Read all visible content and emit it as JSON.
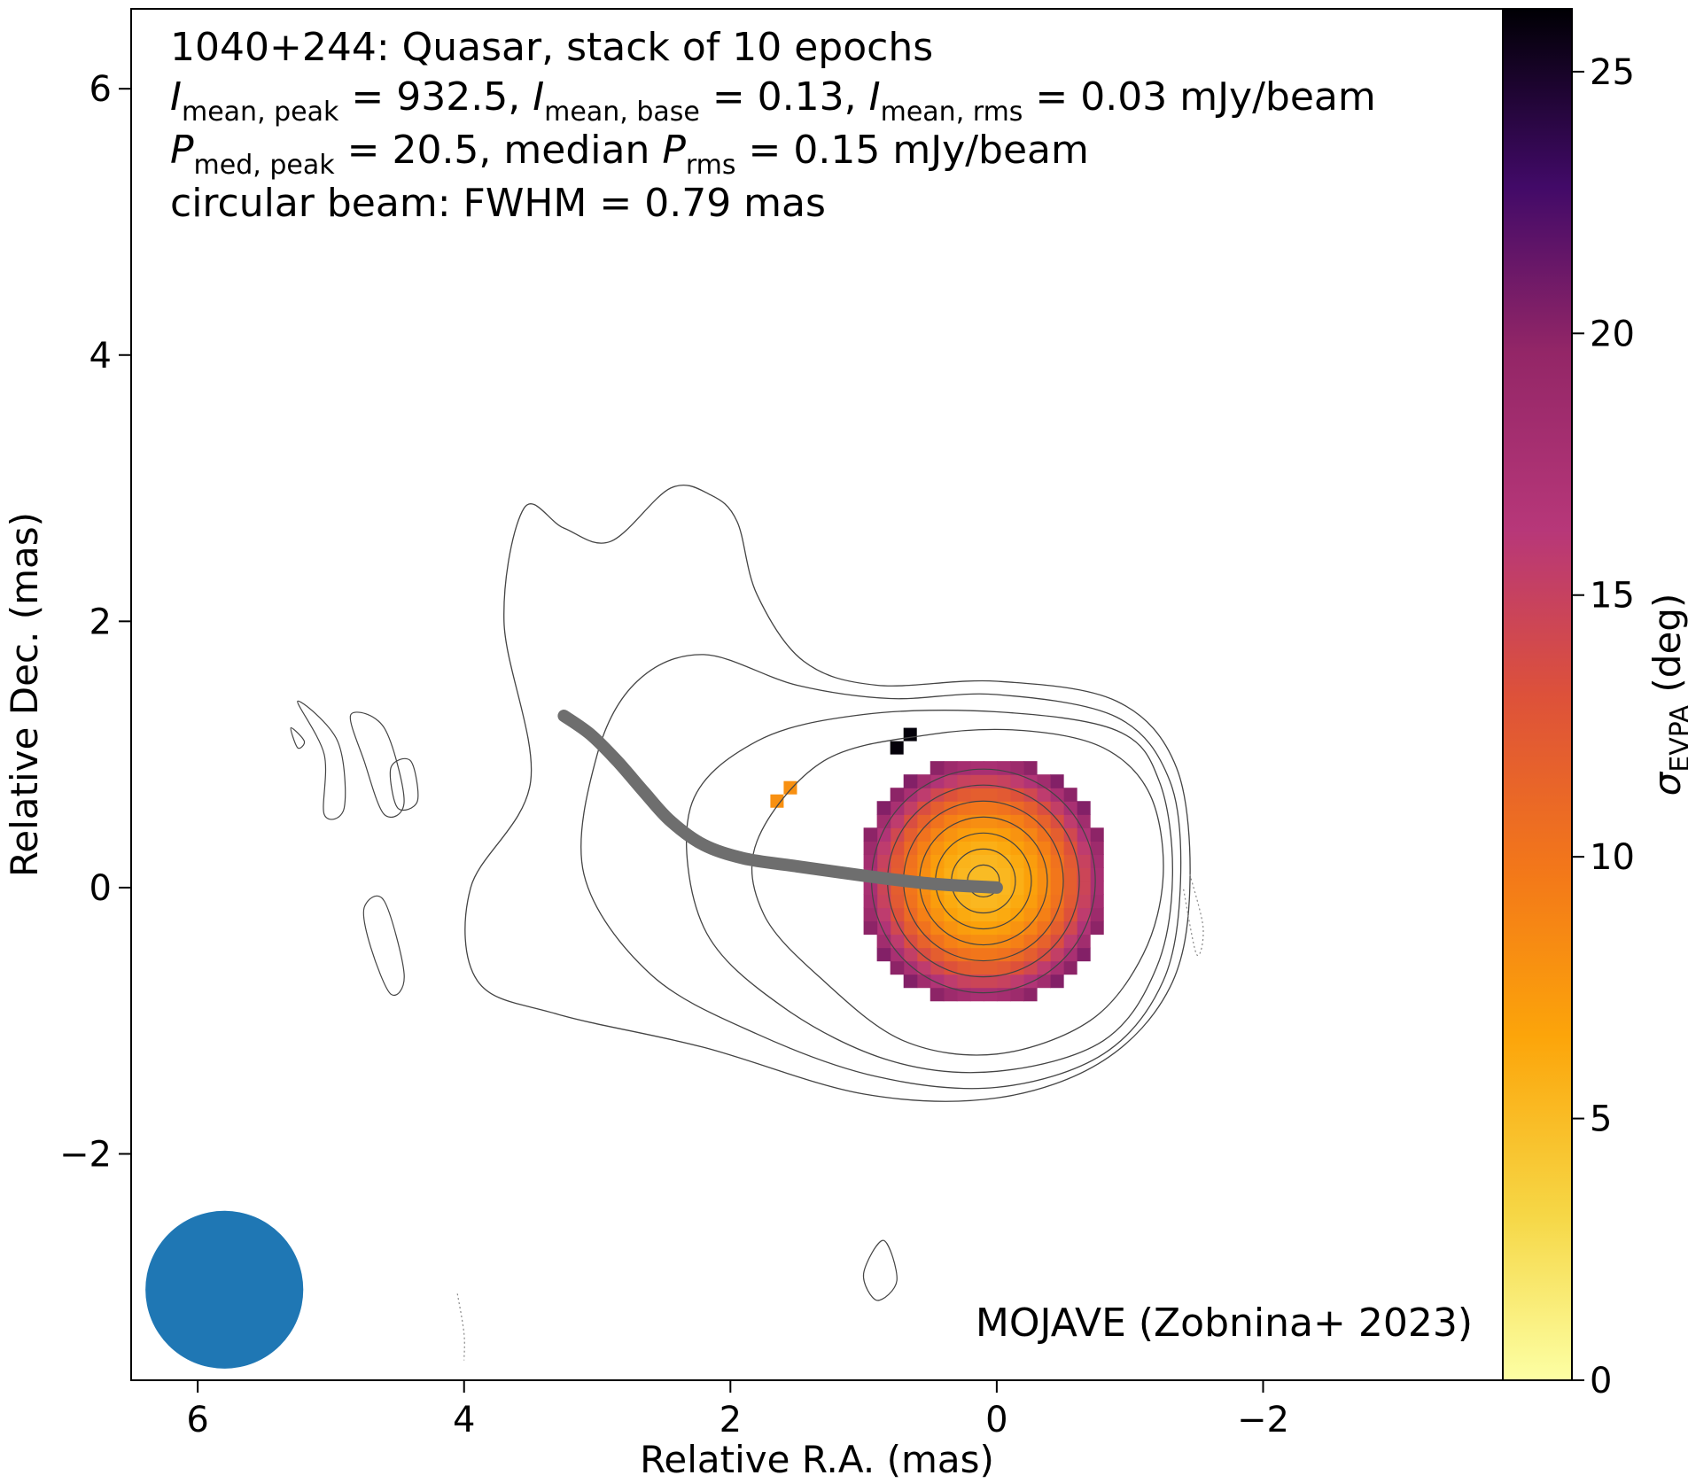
{
  "chart_data": {
    "type": "heatmap",
    "xlabel": "Relative R.A. (mas)",
    "ylabel": "Relative Dec. (mas)",
    "xlim": [
      6.5,
      -3.8
    ],
    "ylim": [
      -3.7,
      6.6
    ],
    "x_ticks": [
      6,
      4,
      2,
      0,
      -2
    ],
    "y_ticks": [
      -2,
      0,
      2,
      4,
      6
    ],
    "x_tick_labels": [
      "6",
      "4",
      "2",
      "0",
      "−2"
    ],
    "y_tick_labels": [
      "−2",
      "0",
      "2",
      "4",
      "6"
    ],
    "colorbar": {
      "label_main": "σ",
      "label_sub": "EVPA",
      "label_unit": "(deg)",
      "range": [
        0,
        26.2
      ],
      "ticks": [
        0,
        5,
        10,
        15,
        20,
        25
      ],
      "tick_labels": [
        "0",
        "5",
        "10",
        "15",
        "20",
        "25"
      ],
      "colormap": "inferno_r"
    },
    "annotation_lines": [
      {
        "parts": [
          {
            "t": "1040+244: Quasar, stack of 10 epochs"
          }
        ]
      },
      {
        "parts": [
          {
            "t": "I",
            "it": true
          },
          {
            "t": "mean, peak",
            "sub": true
          },
          {
            "t": " = 932.5, "
          },
          {
            "t": "I",
            "it": true
          },
          {
            "t": "mean, base",
            "sub": true
          },
          {
            "t": " = 0.13, "
          },
          {
            "t": "I",
            "it": true
          },
          {
            "t": "mean, rms",
            "sub": true
          },
          {
            "t": " = 0.03 mJy/beam"
          }
        ]
      },
      {
        "parts": [
          {
            "t": "P",
            "it": true
          },
          {
            "t": "med, peak",
            "sub": true
          },
          {
            "t": " = 20.5, median "
          },
          {
            "t": "P",
            "it": true
          },
          {
            "t": "rms",
            "sub": true
          },
          {
            "t": " = 0.15 mJy/beam"
          }
        ]
      },
      {
        "parts": [
          {
            "t": "circular beam: FWHM = 0.79 mas"
          }
        ]
      }
    ],
    "credit": "MOJAVE (Zobnina+ 2023)",
    "beam": {
      "x": 5.8,
      "y": -3.02,
      "fwhm_mas": 0.79,
      "color": "#1f77b4"
    },
    "ridge_line": {
      "color": "#6e6e6e",
      "points": [
        [
          3.25,
          1.29
        ],
        [
          3.05,
          1.15
        ],
        [
          2.85,
          0.95
        ],
        [
          2.65,
          0.72
        ],
        [
          2.45,
          0.5
        ],
        [
          2.2,
          0.32
        ],
        [
          1.9,
          0.22
        ],
        [
          1.5,
          0.16
        ],
        [
          1.0,
          0.09
        ],
        [
          0.5,
          0.03
        ],
        [
          0.0,
          0.0
        ]
      ]
    },
    "evpa_map": {
      "center": [
        0.1,
        0.05
      ],
      "radius": 0.95,
      "cell_mas": 0.1,
      "note_values": "sigma_EVPA ~5 deg at core rising to ~21 deg at edge",
      "core_value": 5,
      "edge_value": 21,
      "isolated_pixels": [
        [
          0.65,
          1.15,
          26
        ],
        [
          0.75,
          1.05,
          26
        ],
        [
          1.55,
          0.75,
          8
        ],
        [
          1.65,
          0.65,
          8
        ]
      ]
    },
    "contours": {
      "color": "#444444",
      "core_circles": {
        "center": [
          0.1,
          0.05
        ],
        "radii": [
          0.12,
          0.24,
          0.36,
          0.48,
          0.6,
          0.72,
          0.84
        ]
      },
      "envelopes": [
        [
          [
            1.8,
            0.35
          ],
          [
            1.3,
            0.95
          ],
          [
            0.5,
            1.15
          ],
          [
            -0.2,
            1.18
          ],
          [
            -0.8,
            1.05
          ],
          [
            -1.15,
            0.7
          ],
          [
            -1.25,
            0.1
          ],
          [
            -1.1,
            -0.5
          ],
          [
            -0.7,
            -1.0
          ],
          [
            0.0,
            -1.25
          ],
          [
            0.7,
            -1.15
          ],
          [
            1.3,
            -0.7
          ],
          [
            1.75,
            -0.2
          ]
        ],
        [
          [
            2.3,
            0.6
          ],
          [
            1.8,
            1.1
          ],
          [
            1.0,
            1.3
          ],
          [
            0.0,
            1.32
          ],
          [
            -0.9,
            1.18
          ],
          [
            -1.22,
            0.8
          ],
          [
            -1.32,
            0.1
          ],
          [
            -1.2,
            -0.6
          ],
          [
            -0.8,
            -1.15
          ],
          [
            0.0,
            -1.38
          ],
          [
            0.8,
            -1.3
          ],
          [
            1.6,
            -0.9
          ],
          [
            2.2,
            -0.3
          ]
        ],
        [
          [
            3.0,
            1.0
          ],
          [
            2.7,
            1.55
          ],
          [
            2.2,
            1.75
          ],
          [
            1.5,
            1.52
          ],
          [
            0.8,
            1.42
          ],
          [
            0.0,
            1.45
          ],
          [
            -0.9,
            1.28
          ],
          [
            -1.3,
            0.8
          ],
          [
            -1.38,
            0.05
          ],
          [
            -1.25,
            -0.7
          ],
          [
            -0.8,
            -1.25
          ],
          [
            0.0,
            -1.5
          ],
          [
            0.9,
            -1.42
          ],
          [
            1.8,
            -1.1
          ],
          [
            2.6,
            -0.65
          ],
          [
            3.1,
            0.1
          ]
        ],
        [
          [
            3.5,
            0.8
          ],
          [
            3.7,
            2.0
          ],
          [
            3.55,
            2.85
          ],
          [
            3.25,
            2.7
          ],
          [
            2.9,
            2.6
          ],
          [
            2.45,
            3.0
          ],
          [
            2.15,
            2.95
          ],
          [
            1.95,
            2.75
          ],
          [
            1.8,
            2.2
          ],
          [
            1.45,
            1.7
          ],
          [
            0.9,
            1.52
          ],
          [
            0.0,
            1.55
          ],
          [
            -0.9,
            1.4
          ],
          [
            -1.35,
            0.9
          ],
          [
            -1.45,
            0.0
          ],
          [
            -1.3,
            -0.75
          ],
          [
            -0.8,
            -1.3
          ],
          [
            0.0,
            -1.58
          ],
          [
            1.0,
            -1.55
          ],
          [
            2.2,
            -1.2
          ],
          [
            3.3,
            -0.95
          ],
          [
            3.9,
            -0.7
          ],
          [
            3.95,
            0.0
          ]
        ]
      ],
      "islands": [
        [
          [
            5.25,
            1.4
          ],
          [
            5.05,
            1.0
          ],
          [
            5.05,
            0.55
          ],
          [
            4.9,
            0.6
          ],
          [
            4.95,
            1.1
          ]
        ],
        [
          [
            4.85,
            1.3
          ],
          [
            4.6,
            1.2
          ],
          [
            4.45,
            0.65
          ],
          [
            4.6,
            0.55
          ],
          [
            4.75,
            0.95
          ]
        ],
        [
          [
            4.55,
            0.9
          ],
          [
            4.5,
            0.6
          ],
          [
            4.35,
            0.65
          ],
          [
            4.4,
            0.95
          ]
        ],
        [
          [
            4.6,
            -0.1
          ],
          [
            4.45,
            -0.65
          ],
          [
            4.55,
            -0.8
          ],
          [
            4.7,
            -0.45
          ],
          [
            4.75,
            -0.15
          ]
        ],
        [
          [
            0.85,
            -2.65
          ],
          [
            0.75,
            -2.95
          ],
          [
            0.9,
            -3.1
          ],
          [
            1.0,
            -2.9
          ]
        ],
        [
          [
            5.3,
            1.2
          ],
          [
            5.2,
            1.1
          ],
          [
            5.25,
            1.05
          ]
        ]
      ],
      "dashed": [
        [
          [
            -1.45,
            0.1
          ],
          [
            -1.55,
            -0.3
          ],
          [
            -1.5,
            -0.5
          ],
          [
            -1.4,
            0.0
          ]
        ],
        [
          [
            4.05,
            -3.05
          ],
          [
            4.0,
            -3.35
          ],
          [
            4.0,
            -3.55
          ]
        ],
        [
          [
            -3.8,
            3.65
          ],
          [
            -3.85,
            3.25
          ]
        ]
      ]
    }
  }
}
